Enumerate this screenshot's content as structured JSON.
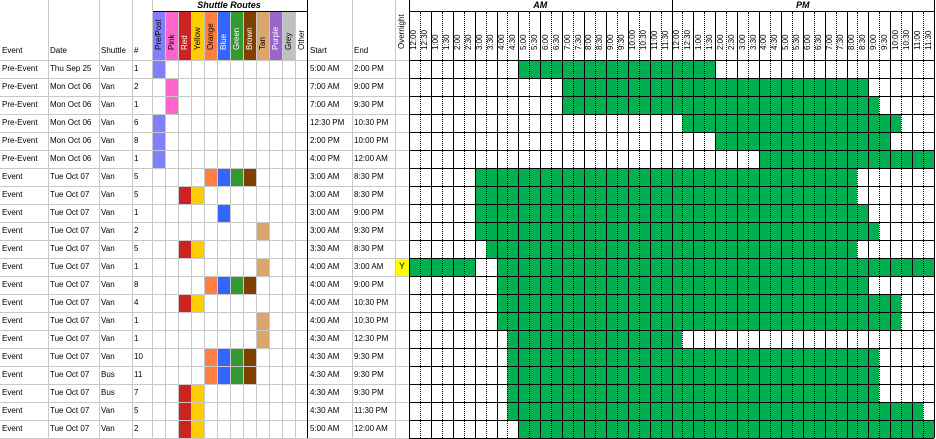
{
  "headers": {
    "event": "Event",
    "date": "Date",
    "shuttle": "Shuttle",
    "num": "#",
    "shuttle_routes": "Shuttle Routes",
    "start": "Start",
    "end": "End",
    "overnight": "Overnight",
    "am": "AM",
    "pm": "PM"
  },
  "routes": [
    {
      "label": "Pre/Post",
      "color": "#8080ff"
    },
    {
      "label": "Pink",
      "color": "#ff66cc"
    },
    {
      "label": "Red",
      "color": "#cc2222"
    },
    {
      "label": "Yellow",
      "color": "#ffcc00"
    },
    {
      "label": "Orange",
      "color": "#ff8040"
    },
    {
      "label": "Blue",
      "color": "#3366ff"
    },
    {
      "label": "Green",
      "color": "#339933"
    },
    {
      "label": "Brown",
      "color": "#804000"
    },
    {
      "label": "Tan",
      "color": "#d9a66b"
    },
    {
      "label": "Purple",
      "color": "#9966cc"
    },
    {
      "label": "Grey",
      "color": "#c0c0c0"
    },
    {
      "label": "Other",
      "color": "#ffffff"
    }
  ],
  "time_slots": [
    "12:00",
    "12:30",
    "1:00",
    "1:30",
    "2:00",
    "2:30",
    "3:00",
    "3:30",
    "4:00",
    "4:30",
    "5:00",
    "5:30",
    "6:00",
    "6:30",
    "7:00",
    "7:30",
    "8:00",
    "8:30",
    "9:00",
    "9:30",
    "10:00",
    "10:30",
    "11:00",
    "11:30",
    "12:00",
    "12:30",
    "1:00",
    "1:30",
    "2:00",
    "2:30",
    "3:00",
    "3:30",
    "4:00",
    "4:30",
    "5:00",
    "5:30",
    "6:00",
    "6:30",
    "7:00",
    "7:30",
    "8:00",
    "8:30",
    "9:00",
    "9:30",
    "10:00",
    "10:30",
    "11:00",
    "11:30"
  ],
  "fill_color": "#00b050",
  "overnight_color": "#ffff00",
  "rows": [
    {
      "event": "Pre-Event",
      "date": "Thu Sep 25",
      "shuttle": "Van",
      "num": "1",
      "routes": [
        0
      ],
      "start": "5:00 AM",
      "end": "2:00 PM",
      "overnight": "",
      "fill": [
        [
          10,
          28
        ]
      ]
    },
    {
      "event": "Pre-Event",
      "date": "Mon Oct 06",
      "shuttle": "Van",
      "num": "2",
      "routes": [
        1
      ],
      "start": "7:00 AM",
      "end": "9:00 PM",
      "overnight": "",
      "fill": [
        [
          14,
          42
        ]
      ]
    },
    {
      "event": "Pre-Event",
      "date": "Mon Oct 06",
      "shuttle": "Van",
      "num": "1",
      "routes": [
        1
      ],
      "start": "7:00 AM",
      "end": "9:30 PM",
      "overnight": "",
      "fill": [
        [
          14,
          43
        ]
      ]
    },
    {
      "event": "Pre-Event",
      "date": "Mon Oct 06",
      "shuttle": "Van",
      "num": "6",
      "routes": [
        0
      ],
      "start": "12:30 PM",
      "end": "10:30 PM",
      "overnight": "",
      "fill": [
        [
          25,
          45
        ]
      ]
    },
    {
      "event": "Pre-Event",
      "date": "Mon Oct 06",
      "shuttle": "Van",
      "num": "8",
      "routes": [
        0
      ],
      "start": "2:00 PM",
      "end": "10:00 PM",
      "overnight": "",
      "fill": [
        [
          28,
          44
        ]
      ]
    },
    {
      "event": "Pre-Event",
      "date": "Mon Oct 06",
      "shuttle": "Van",
      "num": "1",
      "routes": [
        0
      ],
      "start": "4:00 PM",
      "end": "12:00 AM",
      "overnight": "",
      "fill": [
        [
          32,
          48
        ]
      ]
    },
    {
      "event": "Event",
      "date": "Tue Oct 07",
      "shuttle": "Van",
      "num": "5",
      "routes": [
        4,
        5,
        6,
        7
      ],
      "start": "3:00 AM",
      "end": "8:30 PM",
      "overnight": "",
      "fill": [
        [
          6,
          41
        ]
      ]
    },
    {
      "event": "Event",
      "date": "Tue Oct 07",
      "shuttle": "Van",
      "num": "5",
      "routes": [
        2,
        3
      ],
      "start": "3:00 AM",
      "end": "8:30 PM",
      "overnight": "",
      "fill": [
        [
          6,
          41
        ]
      ]
    },
    {
      "event": "Event",
      "date": "Tue Oct 07",
      "shuttle": "Van",
      "num": "1",
      "routes": [
        5
      ],
      "start": "3:00 AM",
      "end": "9:00 PM",
      "overnight": "",
      "fill": [
        [
          6,
          42
        ]
      ]
    },
    {
      "event": "Event",
      "date": "Tue Oct 07",
      "shuttle": "Van",
      "num": "2",
      "routes": [
        8
      ],
      "start": "3:00 AM",
      "end": "9:30 PM",
      "overnight": "",
      "fill": [
        [
          6,
          43
        ]
      ]
    },
    {
      "event": "Event",
      "date": "Tue Oct 07",
      "shuttle": "Van",
      "num": "5",
      "routes": [
        2,
        3
      ],
      "start": "3:30 AM",
      "end": "8:30 PM",
      "overnight": "",
      "fill": [
        [
          7,
          41
        ]
      ]
    },
    {
      "event": "Event",
      "date": "Tue Oct 07",
      "shuttle": "Van",
      "num": "1",
      "routes": [
        8
      ],
      "start": "4:00 AM",
      "end": "3:00 AM",
      "overnight": "Y",
      "fill": [
        [
          0,
          6
        ],
        [
          8,
          48
        ]
      ]
    },
    {
      "event": "Event",
      "date": "Tue Oct 07",
      "shuttle": "Van",
      "num": "8",
      "routes": [
        4,
        5,
        6,
        7
      ],
      "start": "4:00 AM",
      "end": "9:00 PM",
      "overnight": "",
      "fill": [
        [
          8,
          42
        ]
      ]
    },
    {
      "event": "Event",
      "date": "Tue Oct 07",
      "shuttle": "Van",
      "num": "4",
      "routes": [
        2,
        3
      ],
      "start": "4:00 AM",
      "end": "10:30 PM",
      "overnight": "",
      "fill": [
        [
          8,
          45
        ]
      ]
    },
    {
      "event": "Event",
      "date": "Tue Oct 07",
      "shuttle": "Van",
      "num": "1",
      "routes": [
        8
      ],
      "start": "4:00 AM",
      "end": "10:30 PM",
      "overnight": "",
      "fill": [
        [
          8,
          45
        ]
      ]
    },
    {
      "event": "Event",
      "date": "Tue Oct 07",
      "shuttle": "Van",
      "num": "1",
      "routes": [
        8
      ],
      "start": "4:30 AM",
      "end": "12:30 PM",
      "overnight": "",
      "fill": [
        [
          9,
          25
        ]
      ]
    },
    {
      "event": "Event",
      "date": "Tue Oct 07",
      "shuttle": "Van",
      "num": "10",
      "routes": [
        4,
        5,
        6,
        7
      ],
      "start": "4:30 AM",
      "end": "9:30 PM",
      "overnight": "",
      "fill": [
        [
          9,
          43
        ]
      ]
    },
    {
      "event": "Event",
      "date": "Tue Oct 07",
      "shuttle": "Bus",
      "num": "11",
      "routes": [
        4,
        5,
        6,
        7
      ],
      "start": "4:30 AM",
      "end": "9:30 PM",
      "overnight": "",
      "fill": [
        [
          9,
          43
        ]
      ]
    },
    {
      "event": "Event",
      "date": "Tue Oct 07",
      "shuttle": "Bus",
      "num": "7",
      "routes": [
        2,
        3
      ],
      "start": "4:30 AM",
      "end": "9:30 PM",
      "overnight": "",
      "fill": [
        [
          9,
          43
        ]
      ]
    },
    {
      "event": "Event",
      "date": "Tue Oct 07",
      "shuttle": "Van",
      "num": "5",
      "routes": [
        2,
        3
      ],
      "start": "4:30 AM",
      "end": "11:30 PM",
      "overnight": "",
      "fill": [
        [
          9,
          47
        ]
      ]
    },
    {
      "event": "Event",
      "date": "Tue Oct 07",
      "shuttle": "Van",
      "num": "2",
      "routes": [
        2,
        3
      ],
      "start": "5:00 AM",
      "end": "12:00 AM",
      "overnight": "",
      "fill": [
        [
          10,
          48
        ]
      ]
    }
  ]
}
